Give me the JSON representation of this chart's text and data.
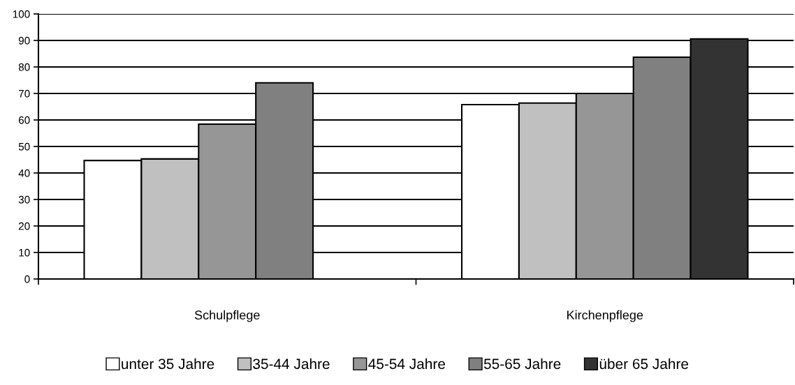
{
  "chart_data": {
    "type": "bar",
    "categories": [
      "Schulpflege",
      "Kirchenpflege"
    ],
    "series": [
      {
        "name": "unter 35 Jahre",
        "color": "#ffffff",
        "values": [
          44.7,
          65.8
        ]
      },
      {
        "name": "35-44 Jahre",
        "color": "#c0c0c0",
        "values": [
          45.3,
          66.4
        ]
      },
      {
        "name": "45-54 Jahre",
        "color": "#969696",
        "values": [
          58.4,
          70.0
        ]
      },
      {
        "name": "55-65 Jahre",
        "color": "#808080",
        "values": [
          74.0,
          83.7
        ]
      },
      {
        "name": "über 65 Jahre",
        "color": "#333333",
        "values": [
          null,
          90.6
        ]
      }
    ],
    "ylim": [
      0,
      100
    ],
    "yticks": [
      0,
      10,
      20,
      30,
      40,
      50,
      60,
      70,
      80,
      90,
      100
    ],
    "grid": "y",
    "legend": "bottom"
  }
}
